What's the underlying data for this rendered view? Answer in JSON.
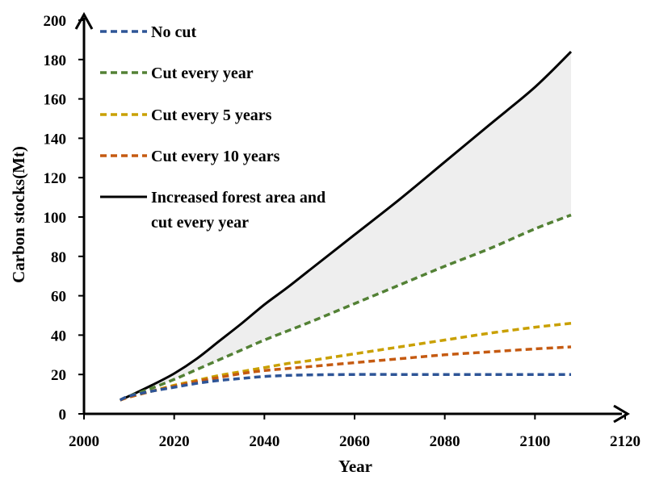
{
  "chart_data": {
    "type": "line",
    "xlabel": "Year",
    "ylabel": "Carbon stocks(Mt)",
    "xlim": [
      2000,
      2120
    ],
    "ylim": [
      0,
      200
    ],
    "x_ticks": [
      2000,
      2020,
      2040,
      2060,
      2080,
      2100,
      2120
    ],
    "y_ticks": [
      0,
      20,
      40,
      60,
      80,
      100,
      120,
      140,
      160,
      180,
      200
    ],
    "grid": false,
    "legend_position": "top-left",
    "shaded_region": {
      "between": [
        "Increased forest area and cut every year",
        "Cut every year"
      ],
      "color": "#eeeeee"
    },
    "x": [
      2008,
      2010,
      2015,
      2020,
      2025,
      2030,
      2035,
      2040,
      2045,
      2050,
      2060,
      2070,
      2080,
      2090,
      2100,
      2108
    ],
    "series": [
      {
        "name": "No cut",
        "color": "#2e5597",
        "style": "dashed",
        "values": [
          7,
          9,
          11.5,
          13.5,
          15.5,
          17,
          18,
          19,
          19.5,
          19.8,
          20,
          20,
          20,
          20,
          20,
          20
        ]
      },
      {
        "name": "Cut every year",
        "color": "#538135",
        "style": "dashed",
        "values": [
          7,
          9,
          13,
          17.5,
          22.5,
          27.5,
          32.5,
          37.5,
          42,
          46.5,
          56,
          65.5,
          75,
          84,
          94,
          101
        ]
      },
      {
        "name": "Cut every 5 years",
        "color": "#c9a000",
        "style": "dashed",
        "values": [
          7,
          8.5,
          11.5,
          14.5,
          17,
          19.5,
          21.5,
          23.5,
          25.5,
          27,
          30.5,
          34,
          37.5,
          41,
          44,
          46
        ]
      },
      {
        "name": "Cut every 10 years",
        "color": "#c55a11",
        "style": "dashed",
        "values": [
          7,
          8.5,
          11.5,
          14,
          16.5,
          18.5,
          20.5,
          22,
          23,
          24,
          26,
          28,
          30,
          31.5,
          33,
          34
        ]
      },
      {
        "name": "Increased forest area and cut every year",
        "legend_lines": [
          "Increased forest area and",
          "cut every year"
        ],
        "color": "#000000",
        "style": "solid",
        "values": [
          7,
          9,
          14.5,
          20.5,
          28,
          37,
          46,
          55.5,
          64,
          73,
          91,
          109,
          128,
          147,
          166,
          184
        ]
      }
    ]
  }
}
